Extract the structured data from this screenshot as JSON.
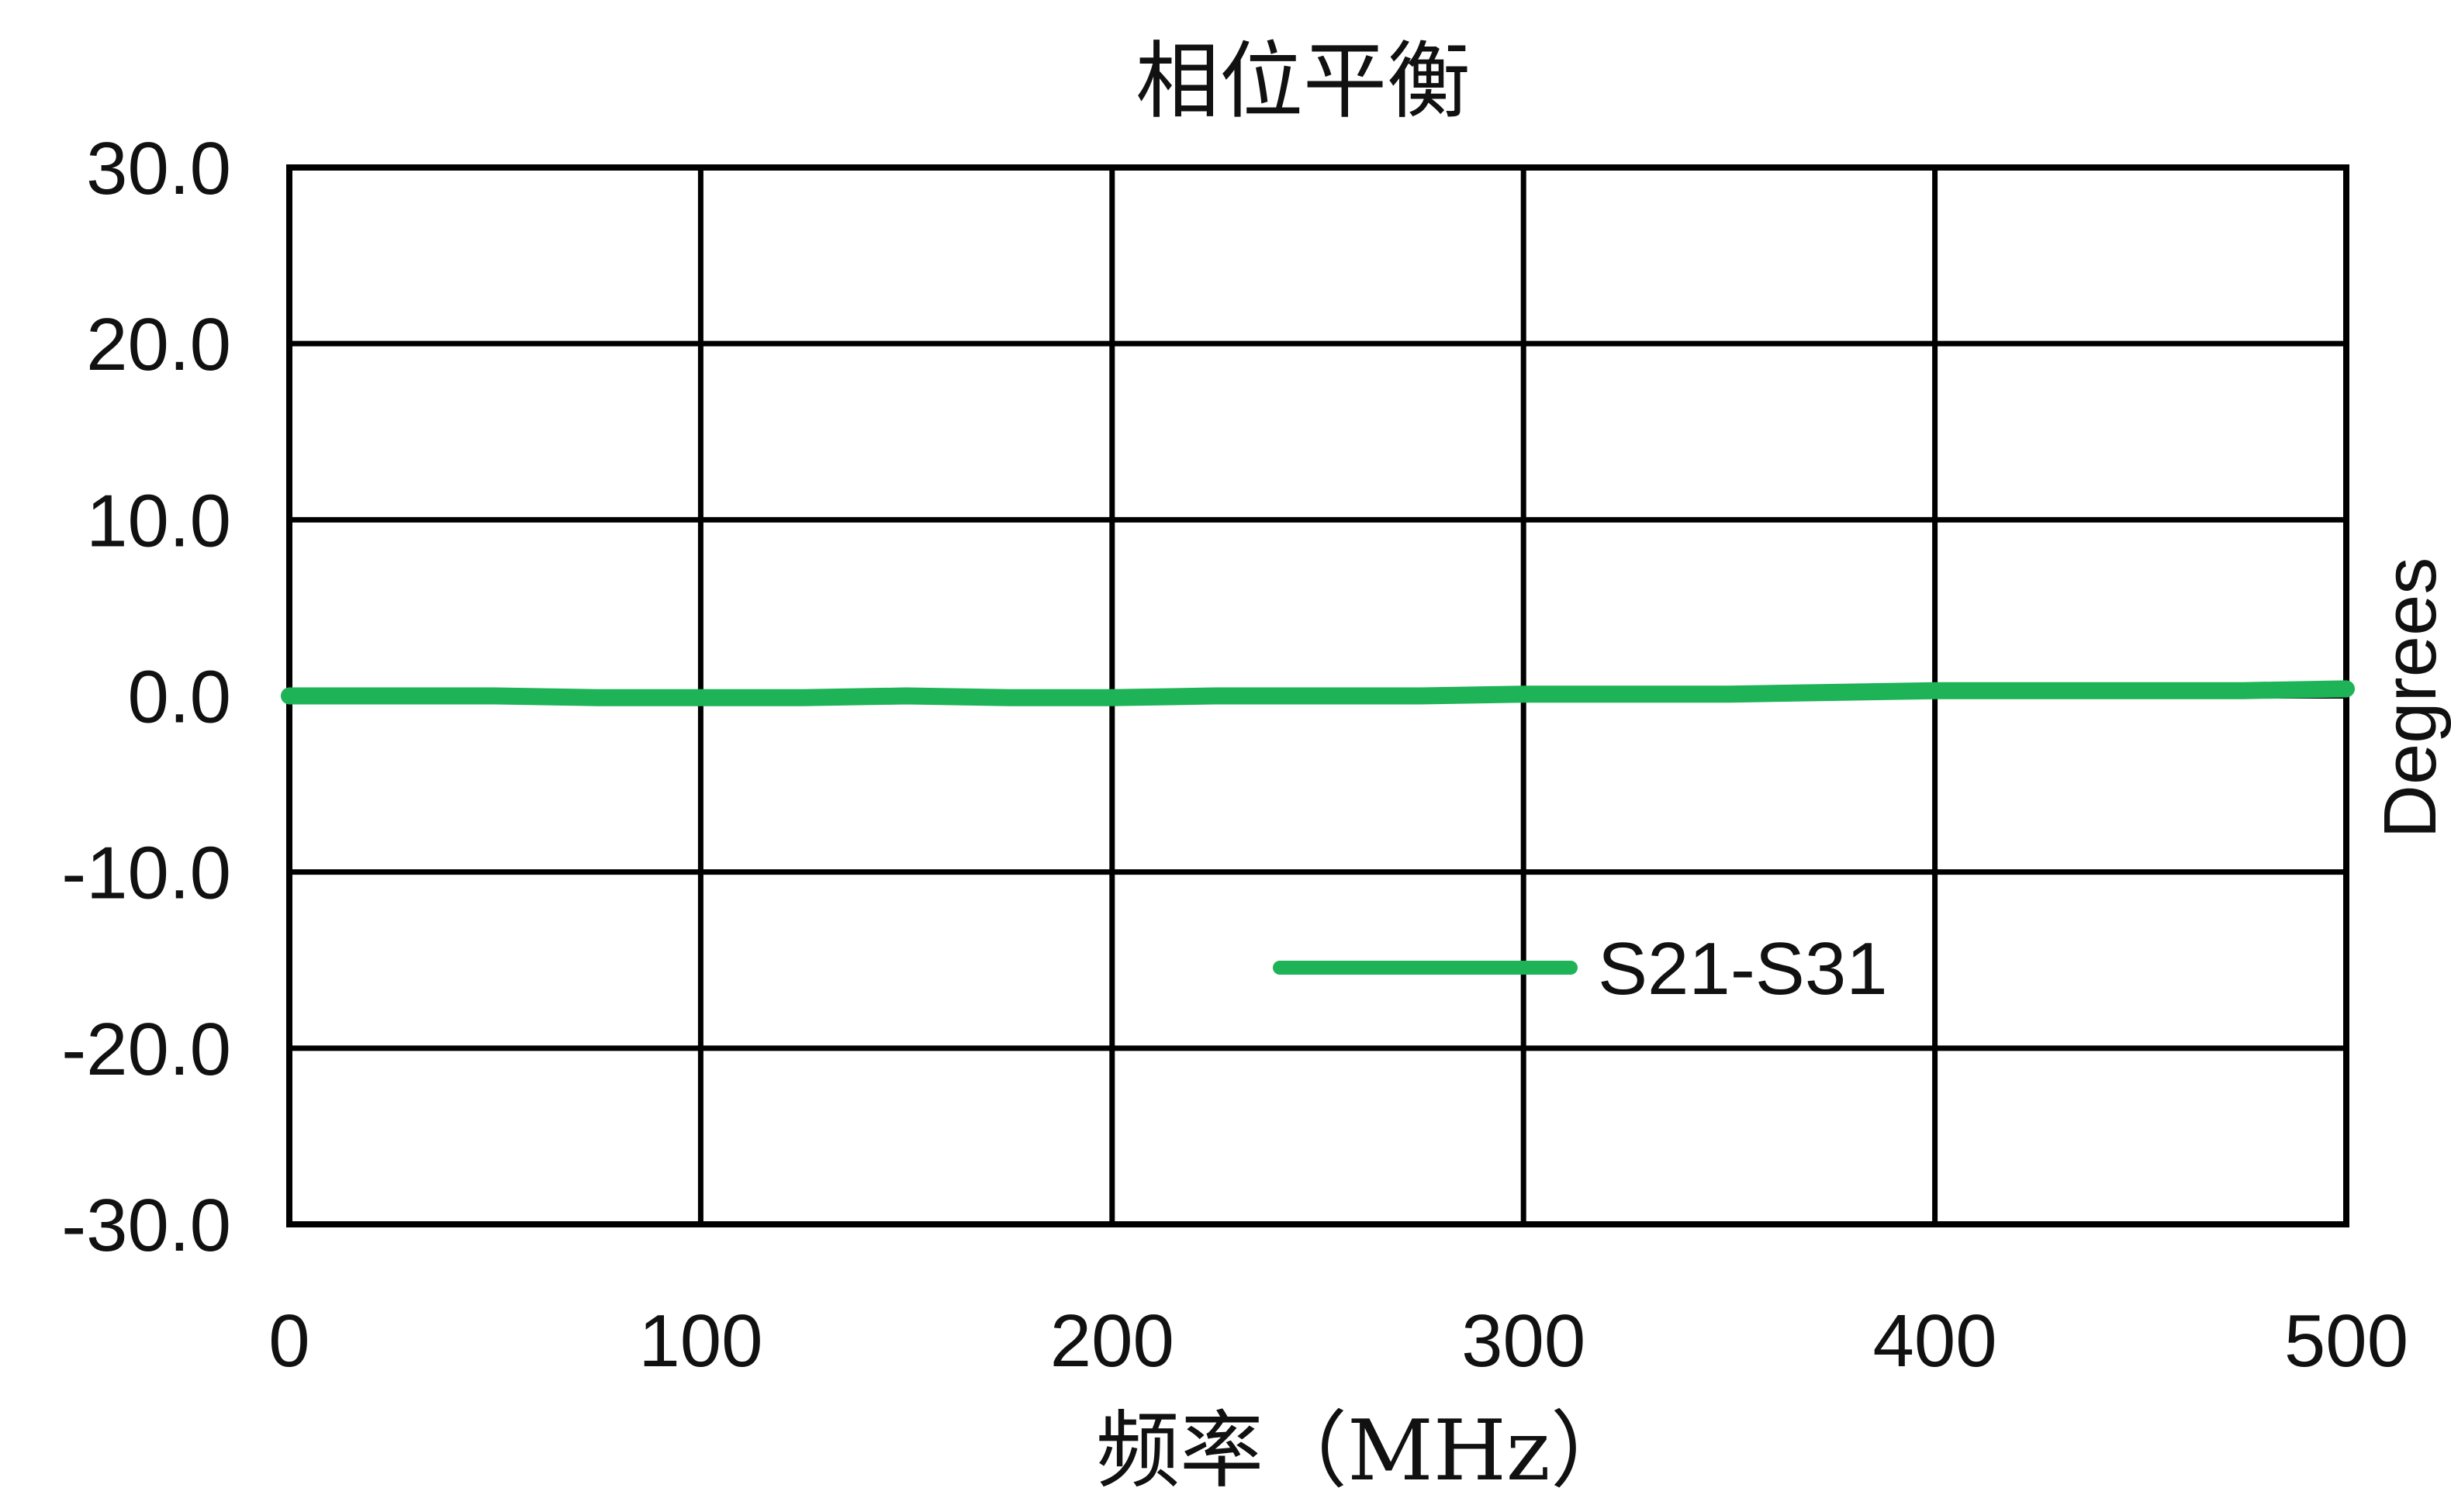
{
  "chart_data": {
    "type": "line",
    "title": "相位平衡",
    "xlabel": "频率（MHz）",
    "ylabel": "Degrees",
    "xlim": [
      0,
      500
    ],
    "ylim": [
      -30,
      30
    ],
    "x_ticks": [
      0,
      100,
      200,
      300,
      400,
      500
    ],
    "y_ticks": [
      30,
      20,
      10,
      0,
      -10,
      -20,
      -30
    ],
    "x_tick_labels": [
      "0",
      "100",
      "200",
      "300",
      "400",
      "500"
    ],
    "y_tick_labels": [
      "30.0",
      "20.0",
      "10.0",
      "0.0",
      "-10.0",
      "-20.0",
      "-30.0"
    ],
    "grid": true,
    "legend_position": "bottom-center",
    "series": [
      {
        "name": "S21-S31",
        "color": "#1db356",
        "x": [
          0,
          25,
          50,
          75,
          100,
          125,
          150,
          175,
          200,
          225,
          250,
          275,
          300,
          325,
          350,
          375,
          400,
          425,
          450,
          475,
          500
        ],
        "y": [
          0.0,
          0.0,
          0.0,
          -0.1,
          -0.1,
          -0.1,
          0.0,
          -0.1,
          -0.1,
          0.0,
          0.0,
          0.0,
          0.1,
          0.1,
          0.1,
          0.2,
          0.3,
          0.3,
          0.3,
          0.3,
          0.4
        ]
      }
    ]
  }
}
